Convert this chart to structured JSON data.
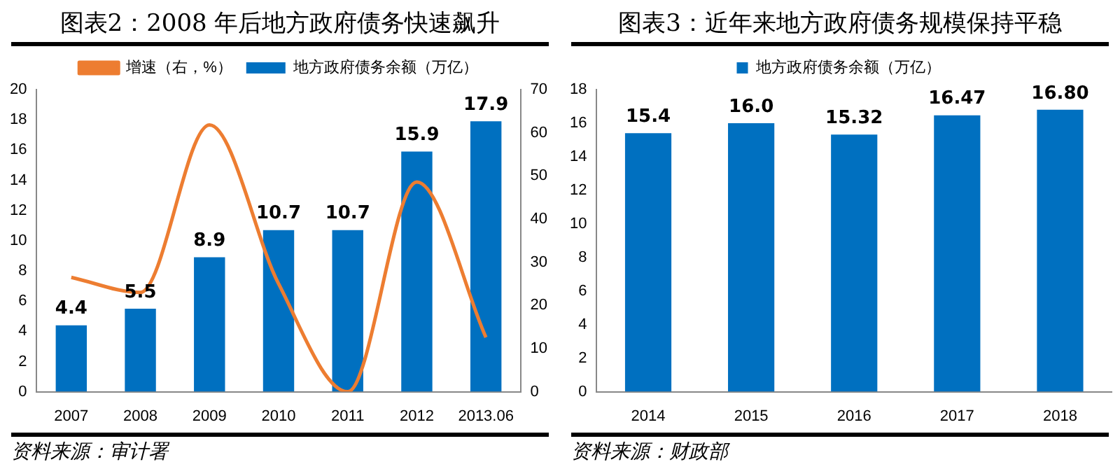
{
  "chart_data": [
    {
      "type": "bar",
      "title": "图表2：2008 年后地方政府债务快速飙升",
      "categories": [
        "2007",
        "2008",
        "2009",
        "2010",
        "2011",
        "2012",
        "2013.06"
      ],
      "series": [
        {
          "name": "地方政府债务余额（万亿）",
          "color": "#0070c0",
          "values": [
            4.4,
            5.5,
            8.9,
            10.7,
            10.7,
            15.9,
            17.9
          ],
          "value_labels": [
            "4.4",
            "5.5",
            "8.9",
            "10.7",
            "10.7",
            "15.9",
            "17.9"
          ]
        },
        {
          "name": "增速（右，%）",
          "type": "line",
          "axis": "y2",
          "color": "#ed7d31",
          "values": [
            26.5,
            23,
            61.8,
            25,
            0,
            48.6,
            12.6
          ]
        }
      ],
      "ylim": [
        0,
        20
      ],
      "yticks": [
        0,
        2,
        4,
        6,
        8,
        10,
        12,
        14,
        16,
        18,
        20
      ],
      "y2lim": [
        0,
        70
      ],
      "y2ticks": [
        0,
        10,
        20,
        30,
        40,
        50,
        60,
        70
      ],
      "grid": false,
      "legend": "top",
      "marker": "none",
      "line_style": "solid",
      "annotations": [
        "资料来源：审计署"
      ]
    },
    {
      "type": "bar",
      "title": "图表3：近年来地方政府债务规模保持平稳",
      "categories": [
        "2014",
        "2015",
        "2016",
        "2017",
        "2018"
      ],
      "series": [
        {
          "name": "地方政府债务余额（万亿）",
          "color": "#0070c0",
          "values": [
            15.4,
            16.0,
            15.32,
            16.47,
            16.8
          ],
          "value_labels": [
            "15.4",
            "16.0",
            "15.32",
            "16.47",
            "16.80"
          ]
        }
      ],
      "ylim": [
        0,
        18
      ],
      "yticks": [
        0,
        2,
        4,
        6,
        8,
        10,
        12,
        14,
        16,
        18
      ],
      "grid": false,
      "legend": "top",
      "annotations": [
        "资料来源：财政部"
      ]
    }
  ]
}
